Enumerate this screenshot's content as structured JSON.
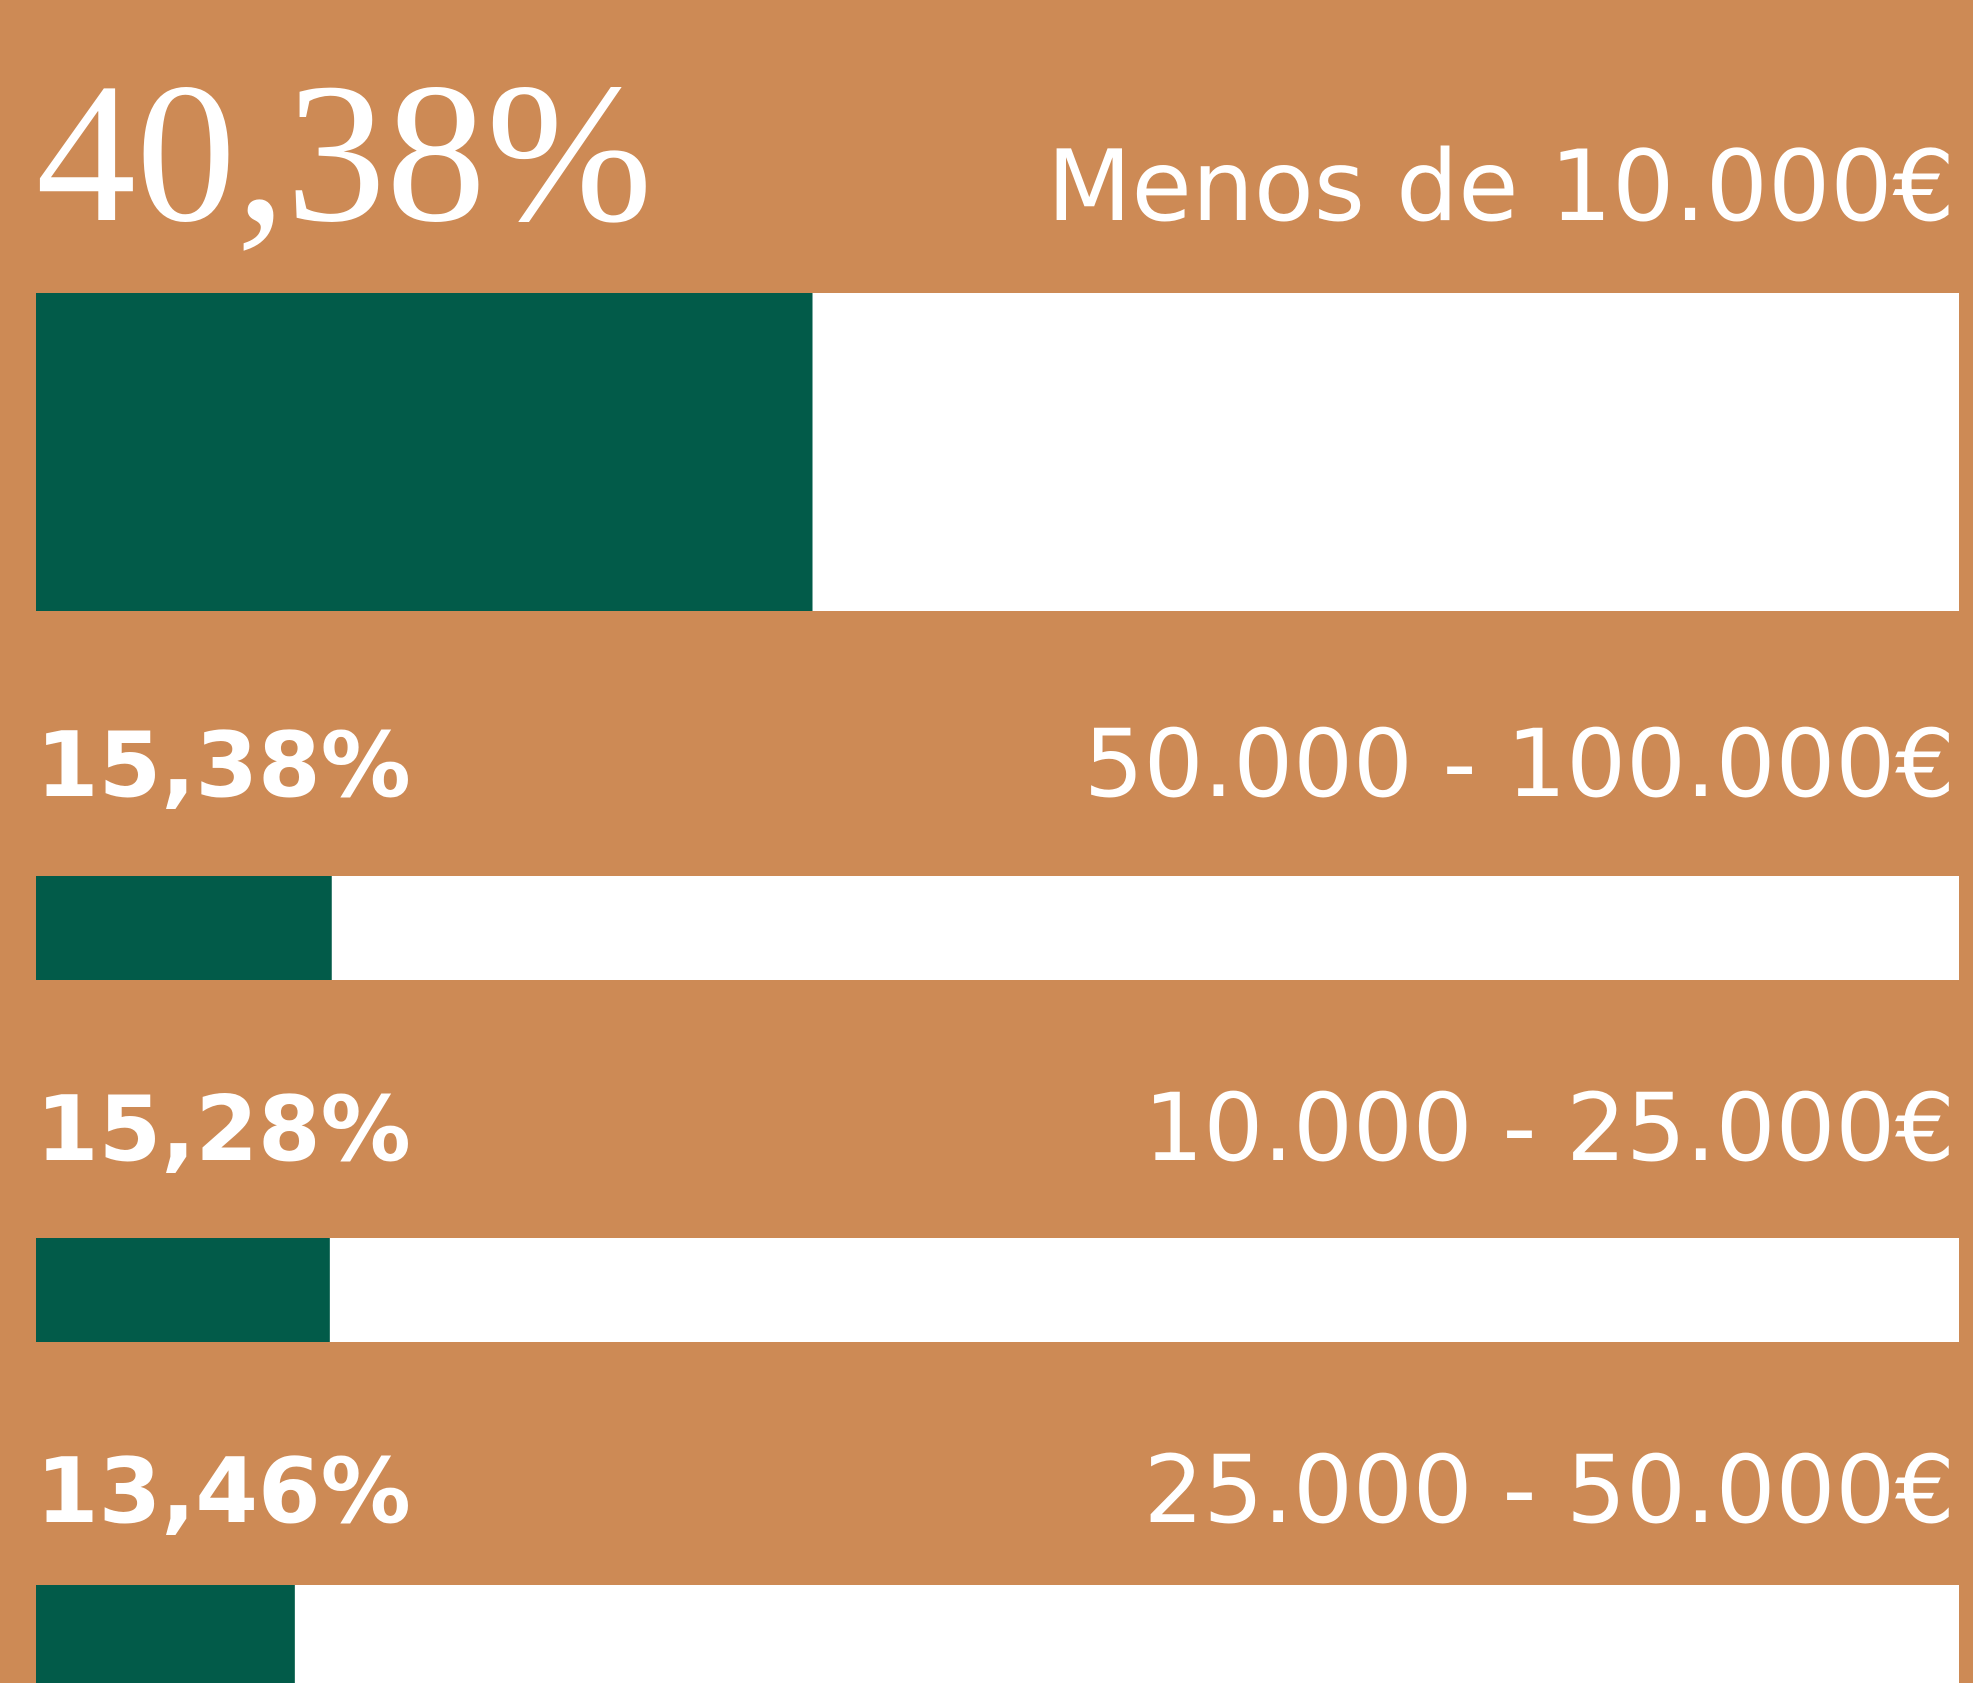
{
  "chart_data": {
    "type": "bar",
    "categories": [
      "Menos de 10.000€",
      "50.000 - 100.000€",
      "10.000 - 25.000€",
      "25.000 - 50.000€"
    ],
    "values": [
      40.38,
      15.38,
      15.28,
      13.46
    ],
    "value_labels": [
      "40,38%",
      "15,38%",
      "15,28%",
      "13,46%"
    ],
    "xlim": [
      0,
      100
    ],
    "color": "#025b49",
    "track_color": "#ffffff",
    "background": "#cd8a55"
  }
}
